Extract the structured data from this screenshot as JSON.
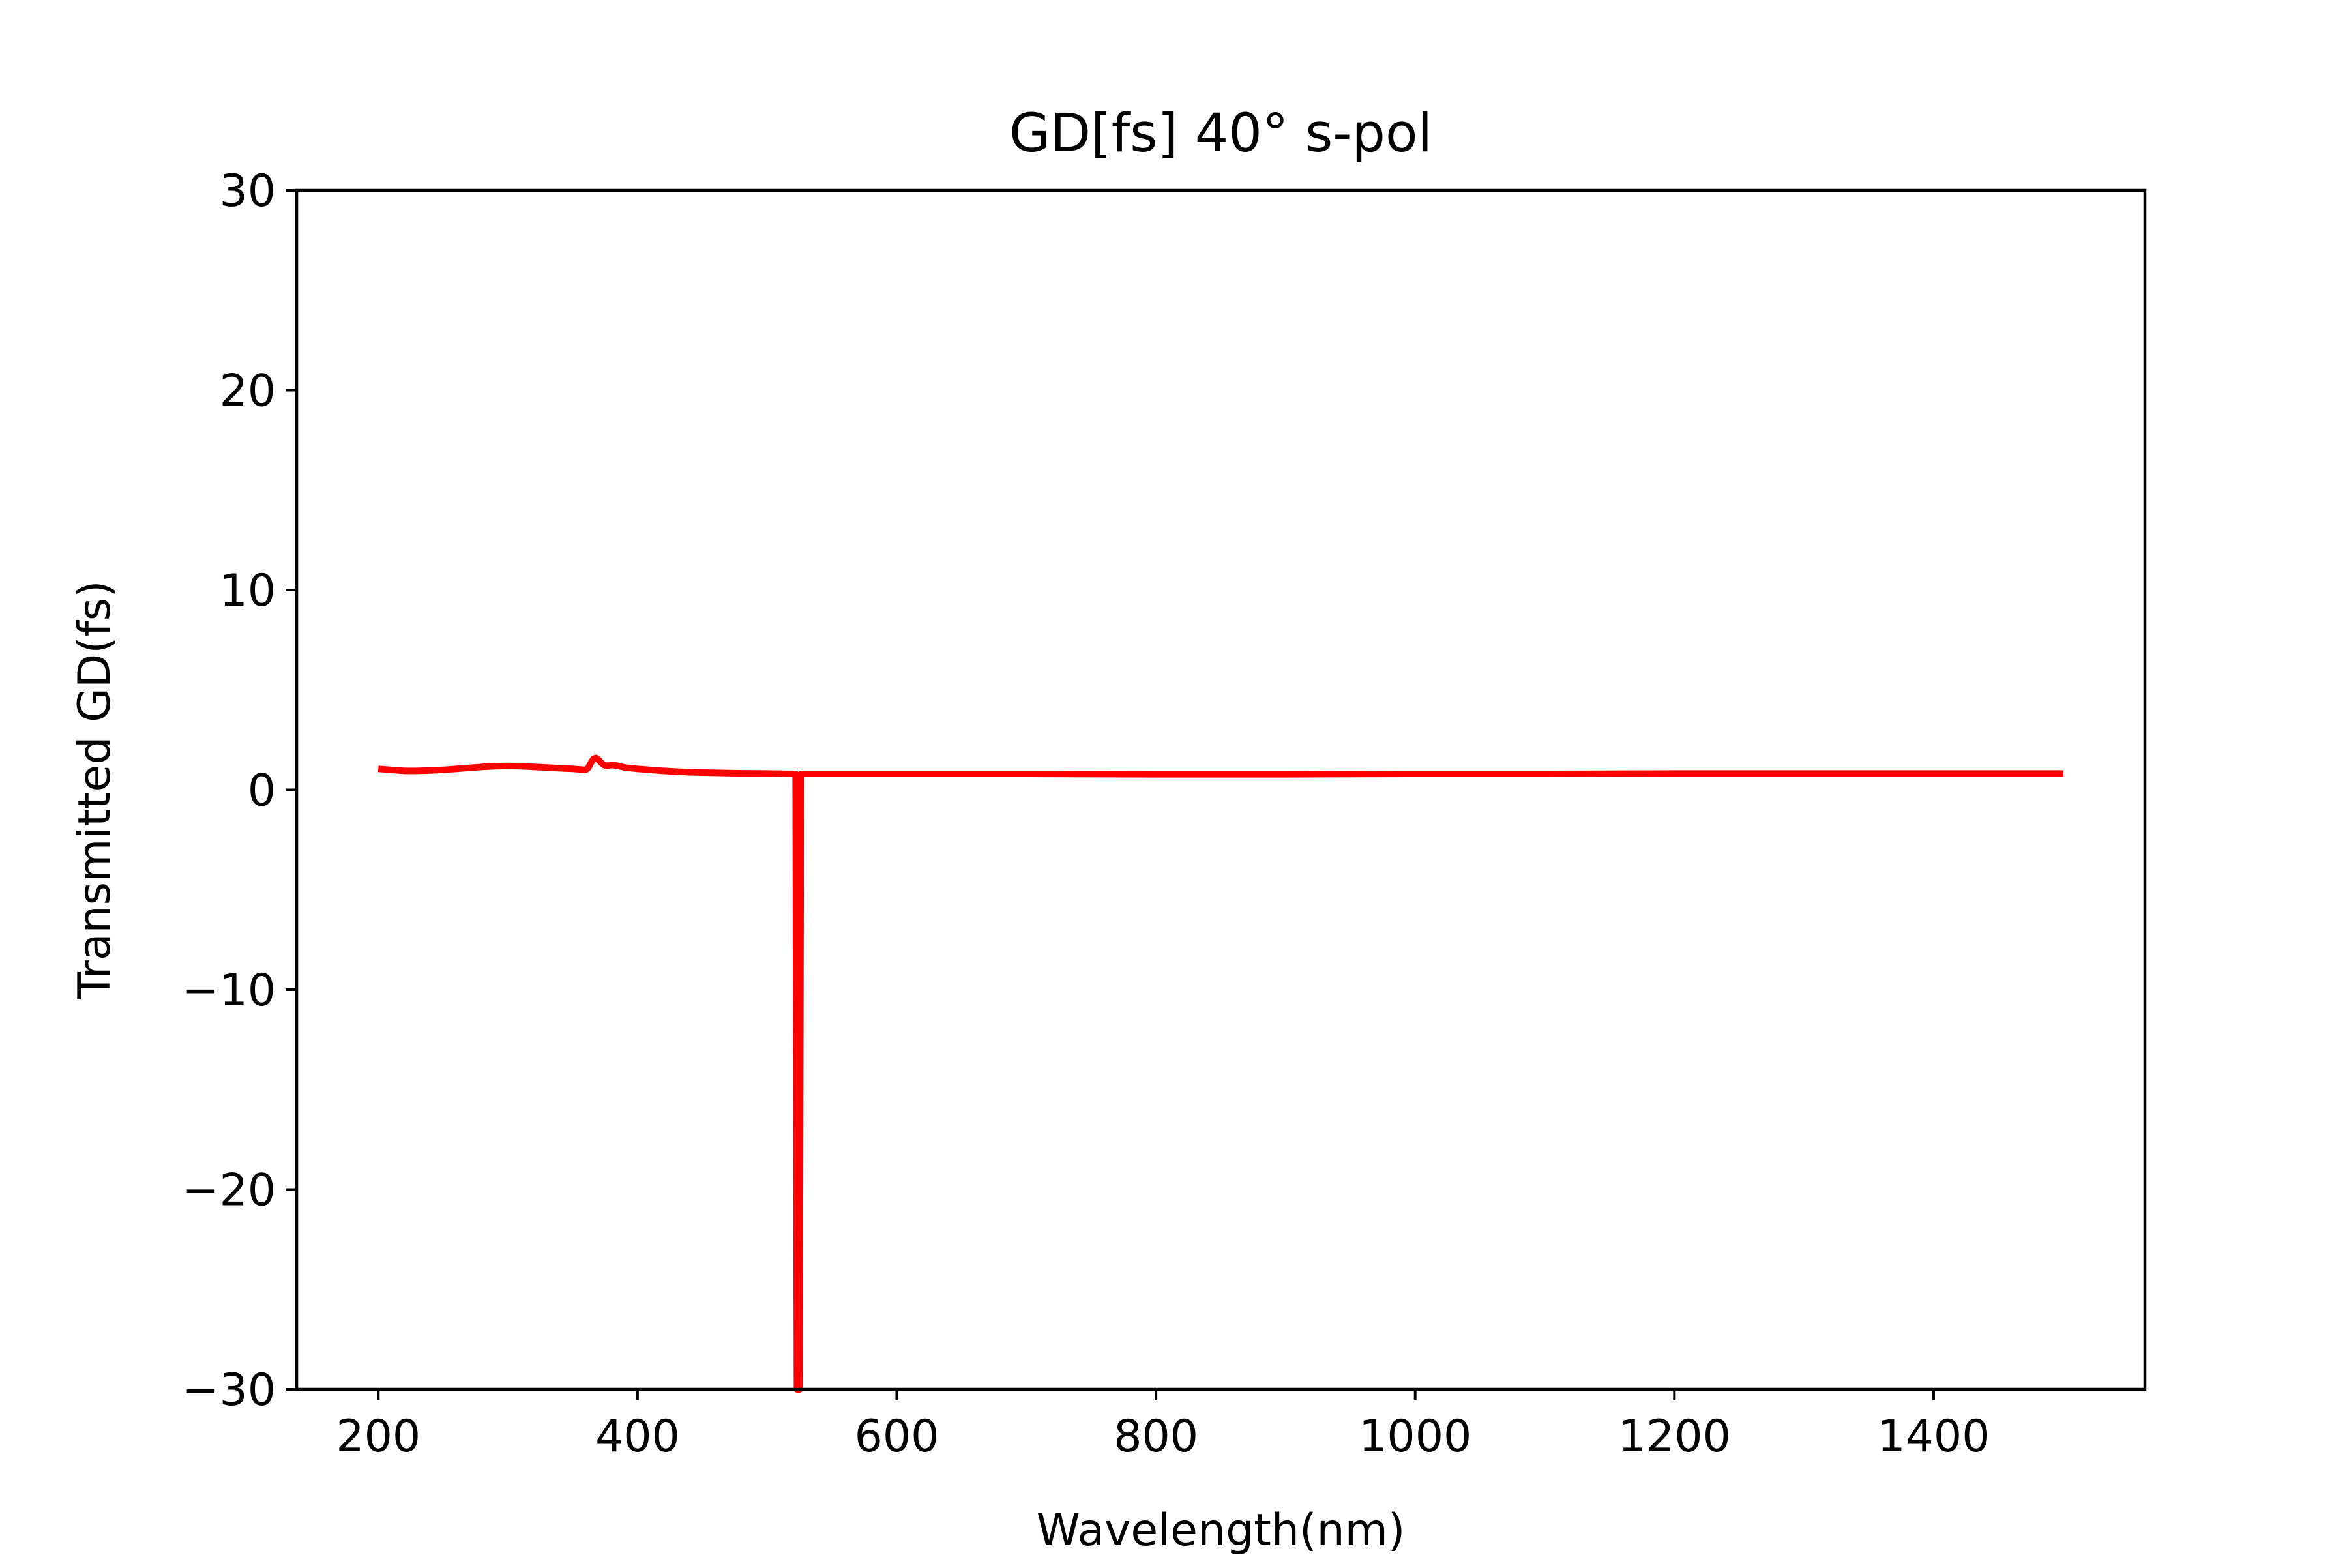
{
  "chart_data": {
    "type": "line",
    "title": "GD[fs] 40° s-pol",
    "xlabel": "Wavelength(nm)",
    "ylabel": "Transmitted GD(fs)",
    "xlim": [
      137,
      1563
    ],
    "ylim": [
      -30,
      30
    ],
    "xticks": [
      200,
      400,
      600,
      800,
      1000,
      1200,
      1400
    ],
    "yticks": [
      -30,
      -20,
      -10,
      0,
      10,
      20,
      30
    ],
    "xtick_labels": [
      "200",
      "400",
      "600",
      "800",
      "1000",
      "1200",
      "1400"
    ],
    "ytick_labels": [
      "−30",
      "−20",
      "−10",
      "0",
      "10",
      "20",
      "30"
    ],
    "grid": false,
    "legend": "none",
    "series": [
      {
        "color": "#ff0000",
        "x": [
          200,
          210,
          220,
          230,
          240,
          250,
          260,
          270,
          280,
          290,
          300,
          310,
          320,
          330,
          340,
          350,
          360,
          362,
          364,
          366,
          368,
          370,
          372,
          374,
          376,
          378,
          380,
          385,
          390,
          400,
          420,
          440,
          460,
          480,
          500,
          520,
          522,
          523,
          524,
          525,
          526,
          528,
          540,
          560,
          600,
          700,
          800,
          900,
          1000,
          1100,
          1200,
          1300,
          1400,
          1500
        ],
        "y": [
          1.05,
          1.0,
          0.95,
          0.95,
          0.97,
          1.0,
          1.05,
          1.1,
          1.15,
          1.18,
          1.2,
          1.18,
          1.15,
          1.12,
          1.08,
          1.05,
          1.0,
          1.1,
          1.35,
          1.55,
          1.6,
          1.5,
          1.35,
          1.25,
          1.2,
          1.22,
          1.25,
          1.2,
          1.12,
          1.05,
          0.95,
          0.88,
          0.85,
          0.83,
          0.82,
          0.8,
          0.8,
          -30,
          -30,
          -30,
          0.8,
          0.8,
          0.8,
          0.8,
          0.8,
          0.8,
          0.78,
          0.78,
          0.8,
          0.8,
          0.82,
          0.82,
          0.82,
          0.82
        ]
      }
    ]
  }
}
